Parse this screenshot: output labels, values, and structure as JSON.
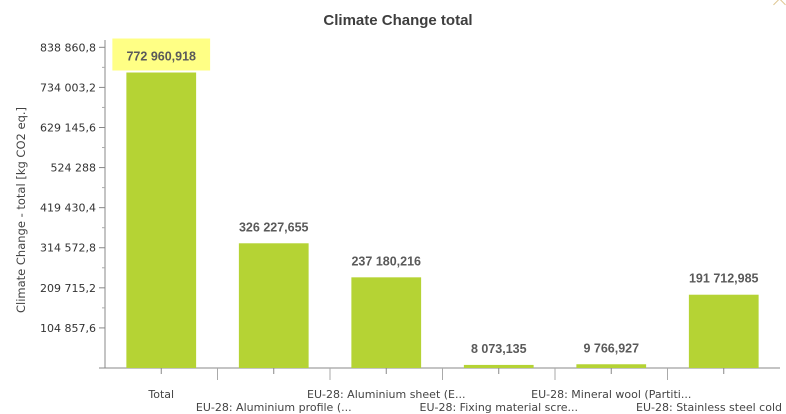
{
  "chart_data": {
    "type": "bar",
    "title": "Climate Change total",
    "ylabel": "Climate Change - total [kg CO2 eq.]",
    "xlabel": "",
    "ylim": [
      0,
      858000
    ],
    "yticks": [
      104857.6,
      209715.2,
      314572.8,
      419430.4,
      524288,
      629145.6,
      734003.2,
      838860.8
    ],
    "ytick_labels": [
      "104 857,6",
      "209 715,2",
      "314 572,8",
      "419 430,4",
      "524 288",
      "629 145,6",
      "734 003,2",
      "838 860,8"
    ],
    "categories": [
      "Total",
      "EU-28: Aluminium profile (...",
      "EU-28: Aluminium sheet (E...",
      "EU-28: Fixing material scre...",
      "EU-28: Mineral wool (Partiti...",
      "EU-28: Stainless steel cold"
    ],
    "values": [
      772960918,
      326227655,
      237180216,
      8073135,
      9766927,
      191712985
    ],
    "plotted_heights": [
      772960.918,
      326227.655,
      237180.216,
      8073.135,
      9766.927,
      191712.985
    ],
    "value_labels": [
      "772 960,918",
      "326 227,655",
      "237 180,216",
      "8 073,135",
      "9 766,927",
      "191 712,985"
    ],
    "highlighted_index": 0,
    "bar_color": "#b5d334",
    "highlight_color": "#ffff66",
    "grid": false
  }
}
